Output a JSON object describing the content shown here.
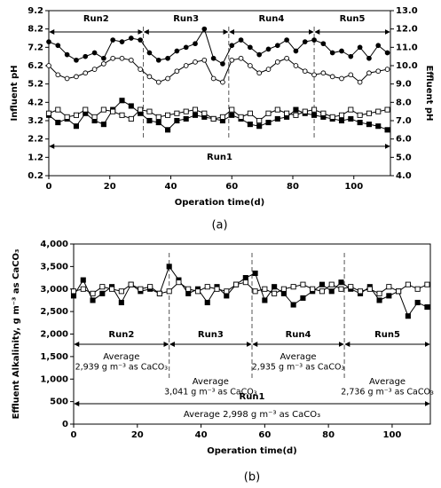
{
  "chart_data": [
    {
      "type": "line",
      "caption": "(a)",
      "xlabel": "Operation time(d)",
      "ylabel": "Influent pH",
      "y2label": "Effluent pH",
      "x": [
        0,
        3,
        6,
        9,
        12,
        15,
        18,
        21,
        24,
        27,
        30,
        33,
        36,
        39,
        42,
        45,
        48,
        51,
        54,
        57,
        60,
        63,
        66,
        69,
        72,
        75,
        78,
        81,
        84,
        87,
        90,
        93,
        96,
        99,
        102,
        105,
        108,
        111
      ],
      "xlim": [
        0,
        112
      ],
      "xticks": [
        0,
        20,
        40,
        60,
        80,
        100
      ],
      "ylim": [
        0.2,
        9.2
      ],
      "yticks": [
        0.2,
        1.2,
        2.2,
        3.2,
        4.2,
        5.2,
        6.2,
        7.2,
        8.2,
        9.2
      ],
      "y2lim": [
        4,
        13
      ],
      "y2ticks": [
        {
          "value": 4,
          "label": "4.0"
        },
        {
          "value": 5,
          "label": "5.0"
        },
        {
          "value": 6,
          "label": "6.0"
        },
        {
          "value": 7,
          "label": "7.0"
        },
        {
          "value": 8,
          "label": "8.0"
        },
        {
          "value": 9,
          "label": "9.0"
        },
        {
          "value": 10,
          "label": "10.0"
        },
        {
          "value": 11,
          "label": "11.0"
        },
        {
          "value": 12,
          "label": "12.0"
        },
        {
          "value": 13,
          "label": "13.0"
        }
      ],
      "series": [
        {
          "marker": "filled-circle",
          "color": "#000000",
          "values": [
            7.5,
            7.3,
            6.8,
            6.5,
            6.7,
            6.9,
            6.6,
            7.6,
            7.5,
            7.7,
            7.6,
            6.9,
            6.5,
            6.6,
            7.0,
            7.2,
            7.4,
            8.2,
            6.6,
            6.3,
            7.3,
            7.6,
            7.2,
            6.8,
            7.1,
            7.3,
            7.6,
            7.0,
            7.5,
            7.6,
            7.4,
            6.9,
            7.0,
            6.7,
            7.2,
            6.6,
            7.3,
            6.9
          ]
        },
        {
          "marker": "open-circle",
          "color": "#000000",
          "values": [
            6.2,
            5.7,
            5.5,
            5.6,
            5.8,
            6.0,
            6.3,
            6.6,
            6.6,
            6.5,
            6.0,
            5.6,
            5.3,
            5.5,
            5.9,
            6.2,
            6.4,
            6.5,
            5.5,
            5.3,
            6.5,
            6.6,
            6.2,
            5.8,
            6.0,
            6.4,
            6.6,
            6.2,
            5.9,
            5.7,
            5.8,
            5.6,
            5.5,
            5.7,
            5.3,
            5.8,
            5.9,
            6.0
          ]
        },
        {
          "marker": "filled-square",
          "color": "#000000",
          "axis": "y2",
          "values": [
            7.3,
            6.9,
            7.1,
            6.7,
            7.4,
            7.0,
            6.8,
            7.6,
            8.1,
            7.8,
            7.4,
            7.0,
            6.9,
            6.5,
            7.0,
            7.1,
            7.3,
            7.2,
            7.1,
            7.0,
            7.3,
            7.1,
            6.8,
            6.7,
            6.9,
            7.1,
            7.2,
            7.6,
            7.4,
            7.3,
            7.2,
            7.1,
            7.0,
            7.1,
            6.9,
            6.8,
            6.7,
            6.5
          ]
        },
        {
          "marker": "open-square",
          "color": "#000000",
          "axis": "y2",
          "values": [
            7.4,
            7.6,
            7.2,
            7.3,
            7.6,
            7.2,
            7.6,
            7.5,
            7.3,
            7.1,
            7.6,
            7.5,
            7.2,
            7.3,
            7.4,
            7.5,
            7.6,
            7.4,
            7.1,
            7.2,
            7.6,
            7.2,
            7.4,
            7.0,
            7.4,
            7.6,
            7.4,
            7.3,
            7.5,
            7.6,
            7.4,
            7.2,
            7.3,
            7.6,
            7.3,
            7.4,
            7.5,
            7.6
          ]
        }
      ],
      "run_boundaries": [
        31,
        59,
        87
      ],
      "runs": [
        {
          "label": "Run2"
        },
        {
          "label": "Run3"
        },
        {
          "label": "Run4"
        },
        {
          "label": "Run5"
        }
      ],
      "run1": "Run1"
    },
    {
      "type": "line",
      "caption": "(b)",
      "xlabel": "Operation time(d)",
      "ylabel": "Effluent Alkalinity, g m⁻³ as CaCO₃",
      "x": [
        0,
        3,
        6,
        9,
        12,
        15,
        18,
        21,
        24,
        27,
        30,
        33,
        36,
        39,
        42,
        45,
        48,
        51,
        54,
        57,
        60,
        63,
        66,
        69,
        72,
        75,
        78,
        81,
        84,
        87,
        90,
        93,
        96,
        99,
        102,
        105,
        108,
        111
      ],
      "xlim": [
        0,
        112
      ],
      "xticks": [
        0,
        20,
        40,
        60,
        80,
        100
      ],
      "ylim": [
        0,
        4000
      ],
      "yticks": [
        0,
        500,
        {
          "value": 1000,
          "label": "1,000"
        },
        {
          "value": 1500,
          "label": "1,500"
        },
        {
          "value": 2000,
          "label": "2,000"
        },
        {
          "value": 2500,
          "label": "2,500"
        },
        {
          "value": 3000,
          "label": "3,000"
        },
        {
          "value": 3500,
          "label": "3,500"
        },
        {
          "value": 4000,
          "label": "4,000"
        }
      ],
      "series": [
        {
          "marker": "filled-square",
          "color": "#000000",
          "values": [
            2850,
            3200,
            2750,
            2900,
            3050,
            2700,
            3100,
            2950,
            3000,
            2900,
            3500,
            3200,
            2900,
            3000,
            2700,
            3050,
            2850,
            3100,
            3250,
            3350,
            2750,
            3050,
            2900,
            2650,
            2800,
            2950,
            3100,
            2950,
            3150,
            3000,
            2900,
            3050,
            2750,
            2850,
            2950,
            2400,
            2700,
            2600
          ]
        },
        {
          "marker": "open-square",
          "color": "#000000",
          "values": [
            2950,
            3000,
            2900,
            3050,
            3000,
            2950,
            3100,
            3000,
            3050,
            2900,
            2950,
            3150,
            3000,
            2950,
            3050,
            3000,
            2950,
            3100,
            3150,
            2950,
            3000,
            2900,
            3000,
            3050,
            3100,
            3000,
            2950,
            3100,
            3000,
            3050,
            2950,
            3000,
            2900,
            3050,
            2950,
            3100,
            3000,
            3100
          ]
        }
      ],
      "run_boundaries": [
        30,
        56,
        85
      ],
      "runs": [
        {
          "label": "Run2",
          "average_label": "Average",
          "average": "2,939 g m⁻³ as CaCO₃"
        },
        {
          "label": "Run3",
          "average_label": "Average",
          "average": "3,041 g m⁻³ as CaCO₃"
        },
        {
          "label": "Run4",
          "average_label": "Average",
          "average": "2,935 g m⁻³ as CaCO₃"
        },
        {
          "label": "Run5",
          "average_label": "Average",
          "average": "2,736 g m⁻³ as CaCO₃"
        }
      ],
      "run1": "Run1",
      "overall_average": "Average 2,998 g m⁻³ as CaCO₃"
    }
  ]
}
